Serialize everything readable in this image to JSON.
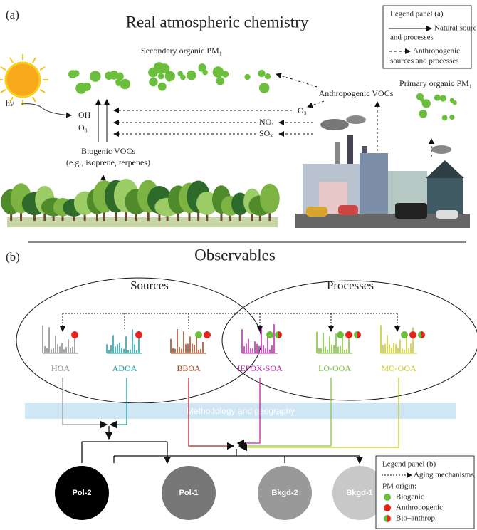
{
  "panel_a": {
    "label": "(a)",
    "title": "Real atmospheric chemistry",
    "legend": {
      "title": "Legend panel (a)",
      "natural": [
        "Natural sources",
        "and processes"
      ],
      "anthropogenic": [
        "Anthropogenic",
        "sources and processes"
      ]
    },
    "secondary": "Secondary organic PM₁",
    "hv": "hν",
    "oxidants": [
      "OH",
      "O₃"
    ],
    "biogenic": [
      "Biogenic VOCs",
      "(e.g., isoprene, terpenes)"
    ],
    "anthropogenic_vocs": "Anthropogenic VOCs",
    "o3": "O₃",
    "nox": "NOₓ",
    "sox": "SOₓ",
    "primary": "Primary organic PM₁"
  },
  "panel_b": {
    "label": "(b)",
    "title": "Observables",
    "sources": "Sources",
    "processes": "Processes",
    "factors": [
      "HOA",
      "ADOA",
      "BBOA",
      "IEPOX-SOA",
      "LO-OOA",
      "MO-OOA"
    ],
    "band": "Methodology and geography",
    "nodes": [
      "Pol-2",
      "Pol-1",
      "Bkgd-2",
      "Bkgd-1"
    ],
    "legend": {
      "title": "Legend panel (b)",
      "aging": "Aging mechanisms",
      "origin": "PM origin:",
      "items": [
        "Biogenic",
        "Anthropogenic",
        "Bio–anthrop."
      ]
    }
  }
}
